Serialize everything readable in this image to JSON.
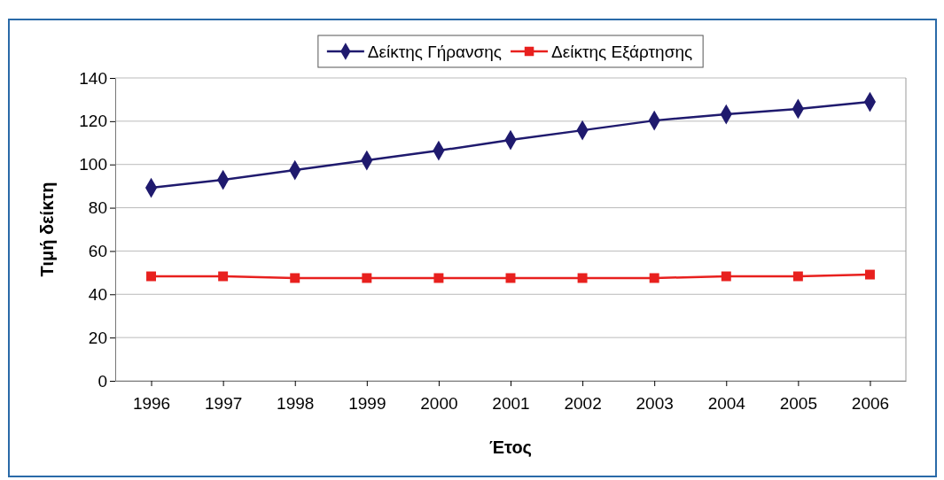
{
  "chart_data": {
    "type": "line",
    "xlabel": "Έτος",
    "ylabel": "Τιμή δείκτη",
    "categories": [
      "1996",
      "1997",
      "1998",
      "1999",
      "2000",
      "2001",
      "2002",
      "2003",
      "2004",
      "2005",
      "2006"
    ],
    "series": [
      {
        "name": "Δείκτης Γήρανσης",
        "color": "#1f1a6e",
        "marker": "diamond",
        "values": [
          89.2,
          92.9,
          97.4,
          101.9,
          106.4,
          111.3,
          115.8,
          120.3,
          123.2,
          125.7,
          128.9
        ]
      },
      {
        "name": "Δείκτης Εξάρτησης",
        "color": "#e8201e",
        "marker": "square",
        "values": [
          48.3,
          48.3,
          47.5,
          47.5,
          47.5,
          47.5,
          47.5,
          47.5,
          48.3,
          48.3,
          49.1
        ]
      }
    ],
    "ylim": [
      0,
      140
    ],
    "yticks": [
      0,
      20,
      40,
      60,
      80,
      100,
      120,
      140
    ],
    "grid": "y",
    "legend": "top"
  }
}
